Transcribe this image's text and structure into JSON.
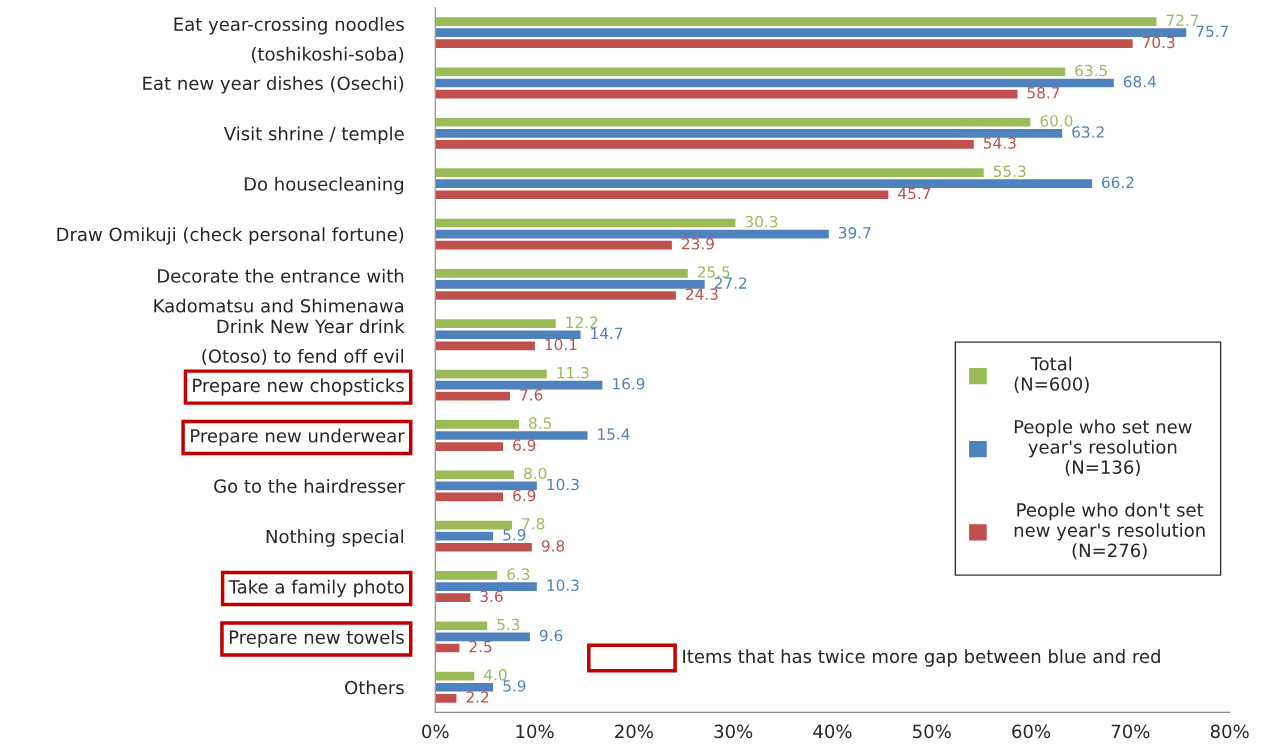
{
  "chart_data": {
    "type": "bar",
    "orientation": "horizontal",
    "categories": [
      "Eat year-crossing noodles\n(toshikoshi-soba)",
      "Eat new year dishes (Osechi)",
      "Visit shrine / temple",
      "Do housecleaning",
      "Draw Omikuji (check personal fortune)",
      "Decorate the entrance with\nKadomatsu and Shimenawa",
      "Drink New Year drink\n(Otoso) to fend off evil",
      "Prepare new chopsticks",
      "Prepare new underwear",
      "Go to the hairdresser",
      "Nothing special",
      "Take a family photo",
      "Prepare new towels",
      "Others"
    ],
    "series": [
      {
        "name": "Total\n(N=600)",
        "color": "#9bbb59",
        "values": [
          72.7,
          63.5,
          60.0,
          55.3,
          30.3,
          25.5,
          12.2,
          11.3,
          8.5,
          8.0,
          7.8,
          6.3,
          5.3,
          4.0
        ],
        "value_labels": [
          "72.7",
          "63.5",
          "60.0",
          "55.3",
          "30.3",
          "25.5",
          "12.2",
          "11.3",
          "8.5",
          "8.0",
          "7.8",
          "6.3",
          "5.3",
          "4.0"
        ]
      },
      {
        "name": "People who set new\nyear's resolution\n(N=136)",
        "color": "#4f81bd",
        "values": [
          75.7,
          68.4,
          63.2,
          66.2,
          39.7,
          27.2,
          14.7,
          16.9,
          15.4,
          10.3,
          5.9,
          10.3,
          9.6,
          5.9
        ]
      },
      {
        "name": "People who don't set\nnew year's resolution\n(N=276)",
        "color": "#c0504d",
        "values": [
          70.3,
          58.7,
          54.3,
          45.7,
          23.9,
          24.3,
          10.1,
          7.6,
          6.9,
          6.9,
          9.8,
          3.6,
          2.5,
          2.2
        ]
      }
    ],
    "xlim": [
      0,
      80
    ],
    "xticks": [
      {
        "value": 0,
        "label": "0%"
      },
      {
        "value": 10,
        "label": "10%"
      },
      {
        "value": 20,
        "label": "20%"
      },
      {
        "value": 30,
        "label": "30%"
      },
      {
        "value": 40,
        "label": "40%"
      },
      {
        "value": 50,
        "label": "50%"
      },
      {
        "value": 60,
        "label": "60%"
      },
      {
        "value": 70,
        "label": "70%"
      },
      {
        "value": 80,
        "label": "80%"
      }
    ],
    "data_labels": true,
    "legend": "right",
    "grid": false,
    "annotations": [
      "Items that has twice more gap between blue and red"
    ]
  }
}
